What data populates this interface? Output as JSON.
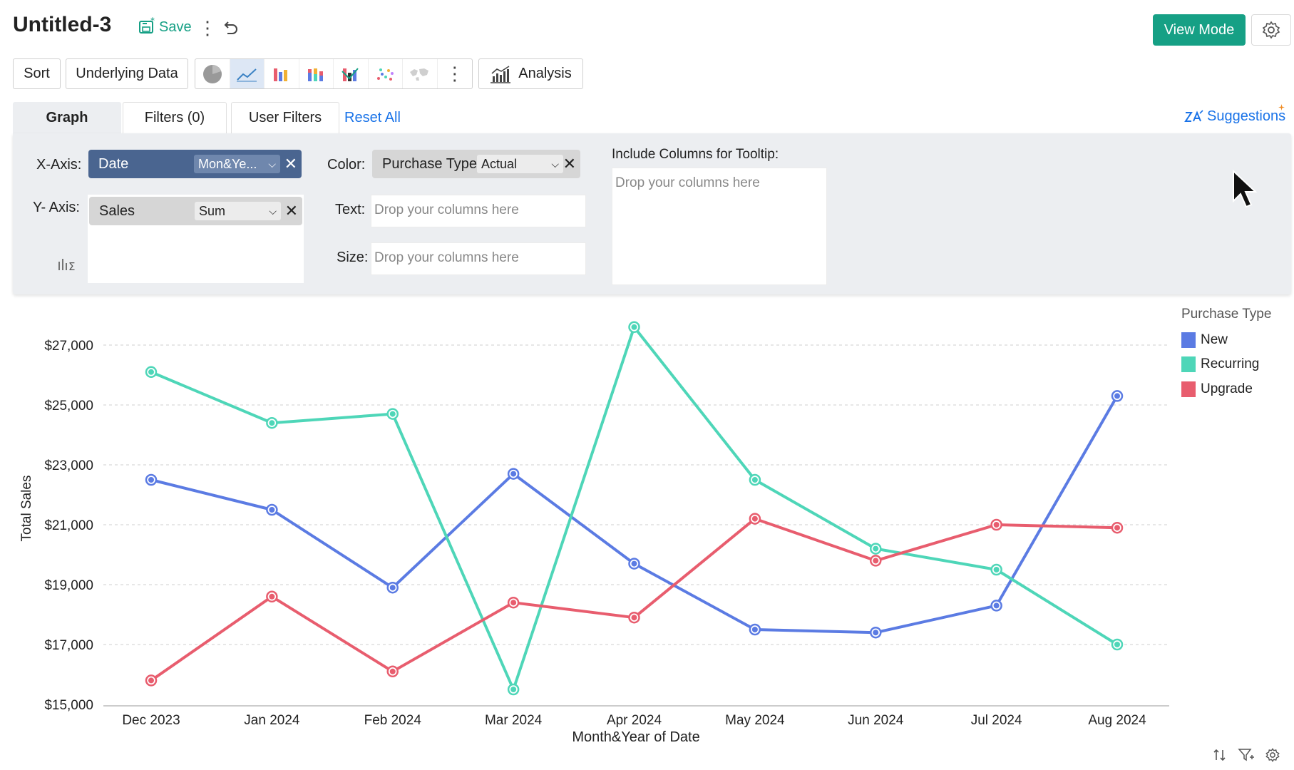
{
  "header": {
    "title": "Untitled-3",
    "save_label": "Save",
    "view_mode_label": "View Mode"
  },
  "toolbar": {
    "sort_label": "Sort",
    "underlying_label": "Underlying Data",
    "analysis_label": "Analysis",
    "chart_types": [
      "pie-chart-icon",
      "line-chart-icon",
      "bar-chart-icon",
      "stacked-bar-icon",
      "waterfall-icon",
      "scatter-icon",
      "map-icon"
    ],
    "active_chart_type": "line-chart-icon"
  },
  "tabs": {
    "graph": "Graph",
    "filters": "Filters  (0)",
    "user_filters": "User Filters",
    "reset_all": "Reset All",
    "suggestions": "Suggestions"
  },
  "config": {
    "x_axis_label": "X-Axis:",
    "x_field": "Date",
    "x_agg": "Mon&Ye...",
    "y_axis_label": "Y- Axis:",
    "y_field": "Sales",
    "y_agg": "Sum",
    "color_label": "Color:",
    "color_field": "Purchase Type",
    "color_agg": "Actual",
    "text_label": "Text:",
    "size_label": "Size:",
    "drop_placeholder": "Drop your columns here",
    "tooltip_label": "Include Columns for Tooltip:"
  },
  "colors": {
    "accent": "#16a085",
    "link": "#1a73e8",
    "new": "#5b7be3",
    "recurring": "#4ed6b8",
    "upgrade": "#e85d6e"
  },
  "chart_data": {
    "type": "line",
    "categories": [
      "Dec 2023",
      "Jan 2024",
      "Feb 2024",
      "Mar 2024",
      "Apr 2024",
      "May 2024",
      "Jun 2024",
      "Jul 2024",
      "Aug 2024"
    ],
    "series": [
      {
        "name": "New",
        "color": "#5b7be3",
        "values": [
          22500,
          21500,
          18900,
          22700,
          19700,
          17500,
          17400,
          18300,
          25300
        ]
      },
      {
        "name": "Recurring",
        "color": "#4ed6b8",
        "values": [
          26100,
          24400,
          24700,
          15500,
          27600,
          22500,
          20200,
          19500,
          17000
        ]
      },
      {
        "name": "Upgrade",
        "color": "#e85d6e",
        "values": [
          15800,
          18600,
          16100,
          18400,
          17900,
          21200,
          19800,
          21000,
          20900
        ]
      }
    ],
    "yticks": [
      "$15,000",
      "$17,000",
      "$19,000",
      "$21,000",
      "$23,000",
      "$25,000",
      "$27,000"
    ],
    "ytick_values": [
      15000,
      17000,
      19000,
      21000,
      23000,
      25000,
      27000
    ],
    "ylim": [
      15000,
      28000
    ],
    "xlabel": "Month&Year of Date",
    "ylabel": "Total Sales",
    "legend_title": "Purchase Type",
    "legend_position": "top-right",
    "grid": true
  }
}
